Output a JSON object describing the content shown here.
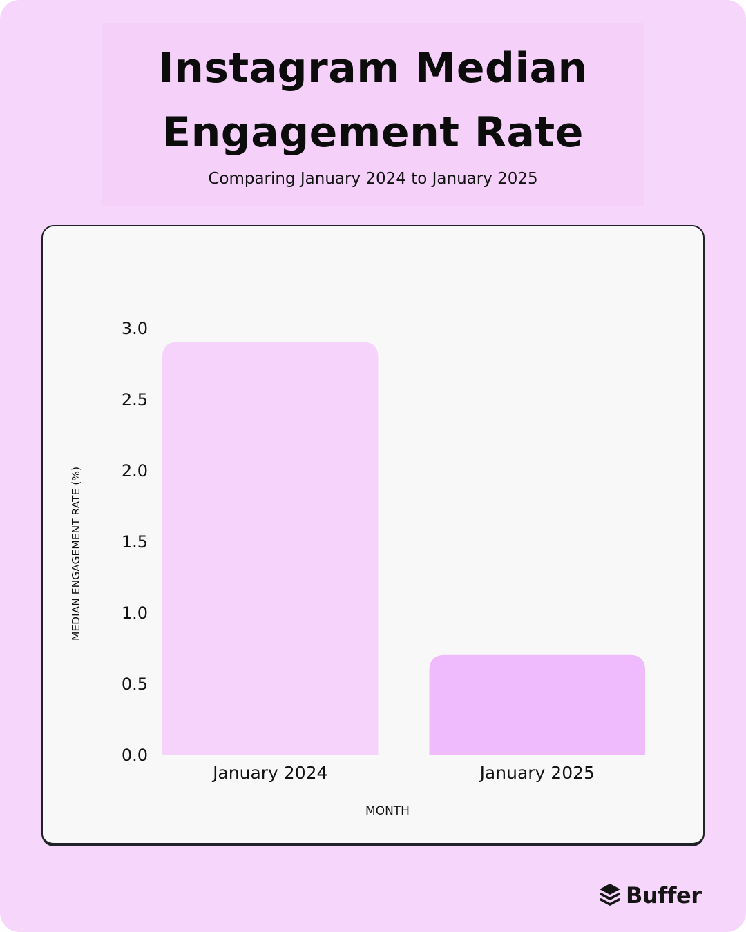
{
  "header": {
    "title": "Instagram Median Engagement Rate",
    "subtitle": "Comparing January 2024 to January 2025"
  },
  "chart_data": {
    "type": "bar",
    "categories": [
      "January 2024",
      "January 2025"
    ],
    "values": [
      2.9,
      0.7
    ],
    "xlabel": "MONTH",
    "ylabel": "MEDIAN ENGAGEMENT RATE (%)",
    "ylim": [
      0,
      3.0
    ],
    "yticks": [
      "0.0",
      "0.5",
      "1.0",
      "1.5",
      "2.0",
      "2.5",
      "3.0"
    ],
    "grid": false,
    "colors": [
      "#f6d3fa",
      "#f0bbfd"
    ]
  },
  "brand": {
    "name": "Buffer",
    "icon": "layers-icon"
  }
}
